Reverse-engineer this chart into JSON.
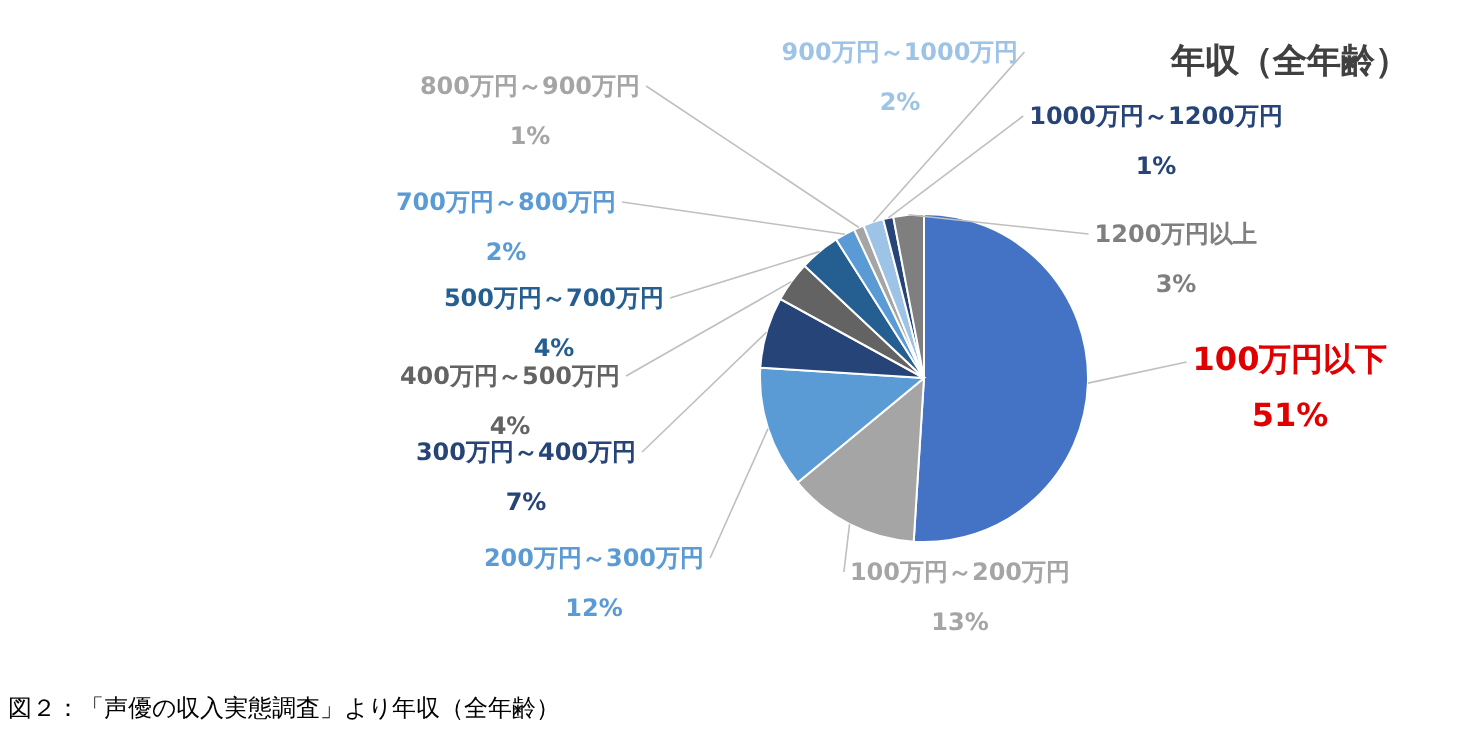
{
  "chart_data": {
    "type": "pie",
    "title": "年収（全年齢）",
    "categories": [
      "100万円以下",
      "100万円～200万円",
      "200万円～300万円",
      "300万円～400万円",
      "400万円～500万円",
      "500万円～700万円",
      "700万円～800万円",
      "800万円～900万円",
      "900万円～1000万円",
      "1000万円～1200万円",
      "1200万円以上"
    ],
    "values": [
      51,
      13,
      12,
      7,
      4,
      4,
      2,
      1,
      2,
      1,
      3
    ],
    "colors": [
      "#4472c4",
      "#a5a5a5",
      "#5b9bd5",
      "#264478",
      "#636363",
      "#255e91",
      "#5b9bd5",
      "#a5a5a5",
      "#9dc3e6",
      "#264478",
      "#7f7f7f"
    ],
    "value_labels": [
      "51%",
      "13%",
      "12%",
      "7%",
      "4%",
      "4%",
      "2%",
      "1%",
      "2%",
      "1%",
      "3%"
    ],
    "annotations": [
      "図２：「声優の収入実態調査」より年収（全年齢）"
    ]
  }
}
